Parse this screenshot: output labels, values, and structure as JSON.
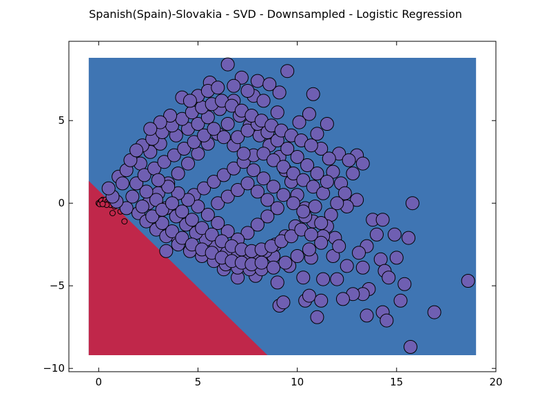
{
  "chart_data": {
    "type": "scatter",
    "title": "Spanish(Spain)-Slovakia - SVD - Downsampled - Logistic Regression",
    "xlabel": "",
    "ylabel": "",
    "xlim": [
      -1.5,
      20
    ],
    "ylim": [
      -10.2,
      9.8
    ],
    "x_ticks": [
      0,
      5,
      10,
      15,
      20
    ],
    "x_tick_labels": [
      "0",
      "5",
      "10",
      "15",
      "20"
    ],
    "y_ticks": [
      -10,
      -5,
      0,
      5
    ],
    "y_tick_labels": [
      "−10",
      "−5",
      "0",
      "5"
    ],
    "grid": false,
    "legend": "none",
    "decision_regions": {
      "extent_x": [
        -0.5,
        19.0
      ],
      "extent_y": [
        -9.2,
        8.8
      ],
      "boundary": [
        [
          -0.5,
          1.35
        ],
        [
          8.5,
          -9.2
        ]
      ],
      "colors": {
        "class_0": "#c0274a",
        "class_1": "#3f75b3"
      }
    },
    "series": [
      {
        "class": "class_0",
        "color": "#c0274a",
        "marker": "small",
        "points": [
          [
            0.0,
            0.0
          ],
          [
            0.1,
            0.1
          ],
          [
            0.2,
            0.2
          ],
          [
            0.3,
            0.1
          ],
          [
            0.05,
            -0.05
          ],
          [
            0.15,
            0.15
          ],
          [
            0.25,
            0.0
          ],
          [
            0.35,
            0.2
          ],
          [
            0.45,
            0.1
          ],
          [
            0.5,
            0.0
          ],
          [
            0.6,
            -0.1
          ],
          [
            0.7,
            -0.6
          ],
          [
            0.55,
            0.25
          ],
          [
            0.4,
            -0.1
          ],
          [
            0.2,
            -0.05
          ],
          [
            0.65,
            0.2
          ],
          [
            0.8,
            -0.2
          ],
          [
            1.3,
            -1.1
          ],
          [
            1.1,
            -0.5
          ],
          [
            0.9,
            0.1
          ]
        ]
      },
      {
        "class": "class_1",
        "color": "#6f5fb2",
        "marker": "large",
        "points": [
          [
            6.5,
            8.4
          ],
          [
            8.0,
            7.4
          ],
          [
            9.5,
            8.0
          ],
          [
            7.2,
            7.6
          ],
          [
            5.6,
            7.3
          ],
          [
            10.8,
            6.6
          ],
          [
            9.1,
            6.7
          ],
          [
            4.2,
            6.4
          ],
          [
            7.8,
            6.5
          ],
          [
            11.5,
            4.8
          ],
          [
            12.1,
            3.0
          ],
          [
            13.0,
            2.9
          ],
          [
            13.3,
            2.4
          ],
          [
            12.6,
            2.6
          ],
          [
            12.8,
            1.8
          ],
          [
            15.8,
            0.0
          ],
          [
            13.0,
            0.2
          ],
          [
            12.5,
            -0.2
          ],
          [
            13.8,
            -1.0
          ],
          [
            14.3,
            -1.0
          ],
          [
            14.0,
            -1.9
          ],
          [
            14.9,
            -1.9
          ],
          [
            15.6,
            -2.1
          ],
          [
            13.5,
            -2.6
          ],
          [
            13.1,
            -3.0
          ],
          [
            14.2,
            -3.4
          ],
          [
            15.0,
            -3.3
          ],
          [
            14.4,
            -4.1
          ],
          [
            13.3,
            -3.9
          ],
          [
            14.6,
            -4.5
          ],
          [
            15.4,
            -4.9
          ],
          [
            13.6,
            -5.2
          ],
          [
            13.3,
            -5.5
          ],
          [
            12.8,
            -5.5
          ],
          [
            12.3,
            -5.8
          ],
          [
            13.5,
            -6.8
          ],
          [
            14.3,
            -6.6
          ],
          [
            14.5,
            -7.1
          ],
          [
            16.9,
            -6.6
          ],
          [
            18.6,
            -4.7
          ],
          [
            15.2,
            -5.9
          ],
          [
            15.7,
            -8.7
          ],
          [
            11.0,
            -6.9
          ],
          [
            10.4,
            -5.9
          ],
          [
            10.6,
            -5.6
          ],
          [
            11.2,
            -5.9
          ],
          [
            10.3,
            -4.5
          ],
          [
            11.3,
            -4.6
          ],
          [
            9.1,
            -6.2
          ],
          [
            9.3,
            -6.0
          ],
          [
            9.0,
            -4.8
          ],
          [
            7.9,
            -4.4
          ],
          [
            7.0,
            -4.5
          ],
          [
            6.3,
            -4.0
          ],
          [
            12.0,
            -4.6
          ],
          [
            12.5,
            -3.8
          ],
          [
            11.8,
            -3.2
          ],
          [
            10.7,
            -3.3
          ],
          [
            9.6,
            -3.8
          ],
          [
            8.8,
            -3.2
          ],
          [
            3.4,
            -2.9
          ],
          [
            4.0,
            -2.2
          ],
          [
            1.4,
            -0.3
          ],
          [
            0.9,
            0.1
          ],
          [
            0.7,
            0.4
          ],
          [
            0.5,
            0.9
          ],
          [
            1.0,
            1.6
          ],
          [
            1.4,
            2.0
          ],
          [
            2.1,
            2.4
          ],
          [
            2.6,
            3.1
          ],
          [
            3.1,
            3.6
          ],
          [
            3.9,
            4.1
          ],
          [
            4.5,
            4.5
          ],
          [
            5.0,
            4.8
          ],
          [
            5.5,
            5.2
          ],
          [
            6.1,
            5.7
          ],
          [
            6.8,
            6.2
          ],
          [
            7.5,
            6.8
          ],
          [
            8.3,
            6.2
          ],
          [
            9.0,
            5.5
          ],
          [
            10.1,
            4.9
          ],
          [
            10.6,
            5.4
          ],
          [
            11.0,
            4.2
          ],
          [
            11.2,
            3.3
          ],
          [
            11.6,
            2.7
          ],
          [
            11.8,
            1.9
          ],
          [
            12.2,
            1.2
          ],
          [
            12.4,
            0.6
          ],
          [
            12.0,
            0.0
          ],
          [
            11.7,
            -0.7
          ],
          [
            11.5,
            -1.4
          ],
          [
            11.9,
            -2.1
          ],
          [
            12.1,
            -2.6
          ],
          [
            11.3,
            -2.0
          ],
          [
            10.8,
            -1.1
          ],
          [
            10.4,
            -0.3
          ],
          [
            10.0,
            0.5
          ],
          [
            9.7,
            1.3
          ],
          [
            9.4,
            2.0
          ],
          [
            9.1,
            2.8
          ],
          [
            8.6,
            3.5
          ],
          [
            8.1,
            4.1
          ],
          [
            7.6,
            4.7
          ],
          [
            7.1,
            5.3
          ],
          [
            6.5,
            4.8
          ],
          [
            6.0,
            4.2
          ],
          [
            5.5,
            3.6
          ],
          [
            5.0,
            3.0
          ],
          [
            4.5,
            2.4
          ],
          [
            4.0,
            1.8
          ],
          [
            3.5,
            1.2
          ],
          [
            3.0,
            0.6
          ],
          [
            2.5,
            0.0
          ],
          [
            2.0,
            -0.6
          ],
          [
            2.4,
            -1.1
          ],
          [
            2.9,
            -1.6
          ],
          [
            3.4,
            -2.0
          ],
          [
            4.0,
            -2.5
          ],
          [
            4.6,
            -2.9
          ],
          [
            5.2,
            -3.2
          ],
          [
            5.8,
            -3.5
          ],
          [
            6.4,
            -3.7
          ],
          [
            7.0,
            -3.9
          ],
          [
            7.6,
            -4.0
          ],
          [
            8.2,
            -4.0
          ],
          [
            8.8,
            -3.9
          ],
          [
            9.4,
            -3.6
          ],
          [
            10.0,
            -3.2
          ],
          [
            10.6,
            -2.8
          ],
          [
            11.2,
            -2.4
          ],
          [
            4.8,
            0.5
          ],
          [
            5.3,
            0.9
          ],
          [
            5.8,
            1.3
          ],
          [
            6.3,
            1.7
          ],
          [
            6.8,
            2.1
          ],
          [
            7.3,
            2.5
          ],
          [
            7.8,
            2.9
          ],
          [
            8.3,
            3.0
          ],
          [
            8.8,
            2.6
          ],
          [
            9.3,
            2.2
          ],
          [
            9.8,
            1.8
          ],
          [
            10.3,
            1.4
          ],
          [
            10.8,
            1.0
          ],
          [
            11.3,
            0.6
          ],
          [
            10.9,
            -0.2
          ],
          [
            10.4,
            -0.8
          ],
          [
            9.9,
            -1.4
          ],
          [
            9.4,
            -2.0
          ],
          [
            8.9,
            -2.5
          ],
          [
            8.4,
            -2.9
          ],
          [
            7.9,
            -3.1
          ],
          [
            7.4,
            -3.2
          ],
          [
            6.9,
            -3.1
          ],
          [
            6.4,
            -2.9
          ],
          [
            5.9,
            -2.6
          ],
          [
            5.4,
            -2.2
          ],
          [
            4.9,
            -1.8
          ],
          [
            4.4,
            -1.3
          ],
          [
            3.9,
            -0.8
          ],
          [
            3.4,
            -0.3
          ],
          [
            2.9,
            0.2
          ],
          [
            2.4,
            0.7
          ],
          [
            1.9,
            1.2
          ],
          [
            2.3,
            1.7
          ],
          [
            2.8,
            2.1
          ],
          [
            3.3,
            2.5
          ],
          [
            3.8,
            2.9
          ],
          [
            4.3,
            3.3
          ],
          [
            4.8,
            3.7
          ],
          [
            5.3,
            4.1
          ],
          [
            5.8,
            4.5
          ],
          [
            6.3,
            4.0
          ],
          [
            6.8,
            3.5
          ],
          [
            7.3,
            3.0
          ],
          [
            7.8,
            2.0
          ],
          [
            8.3,
            1.5
          ],
          [
            8.8,
            1.0
          ],
          [
            9.3,
            0.5
          ],
          [
            9.8,
            0.0
          ],
          [
            10.3,
            -0.5
          ],
          [
            6.0,
            0.0
          ],
          [
            6.5,
            0.4
          ],
          [
            7.0,
            0.8
          ],
          [
            7.5,
            1.2
          ],
          [
            8.0,
            0.7
          ],
          [
            8.5,
            0.2
          ],
          [
            9.0,
            -0.3
          ],
          [
            8.5,
            -0.8
          ],
          [
            8.0,
            -1.3
          ],
          [
            7.5,
            -1.8
          ],
          [
            7.0,
            -2.2
          ],
          [
            6.5,
            -1.7
          ],
          [
            6.0,
            -1.2
          ],
          [
            5.5,
            -0.7
          ],
          [
            5.0,
            -0.2
          ],
          [
            4.5,
            0.2
          ],
          [
            4.0,
            0.6
          ],
          [
            3.5,
            1.0
          ],
          [
            3.0,
            1.4
          ],
          [
            3.2,
            -1.2
          ],
          [
            3.7,
            -1.7
          ],
          [
            4.2,
            -2.1
          ],
          [
            4.7,
            -2.5
          ],
          [
            5.2,
            -2.8
          ],
          [
            5.7,
            -3.0
          ],
          [
            6.2,
            -3.3
          ],
          [
            6.7,
            -3.5
          ],
          [
            7.2,
            -3.6
          ],
          [
            7.7,
            -3.7
          ],
          [
            8.2,
            -3.6
          ],
          [
            7.0,
            4.0
          ],
          [
            7.5,
            4.4
          ],
          [
            8.0,
            4.8
          ],
          [
            8.5,
            4.3
          ],
          [
            9.0,
            3.8
          ],
          [
            9.5,
            3.3
          ],
          [
            10.0,
            2.8
          ],
          [
            10.5,
            2.3
          ],
          [
            11.0,
            1.8
          ],
          [
            11.5,
            1.3
          ],
          [
            2.2,
            3.5
          ],
          [
            2.7,
            3.9
          ],
          [
            3.2,
            4.3
          ],
          [
            3.7,
            4.7
          ],
          [
            4.2,
            5.1
          ],
          [
            4.7,
            5.5
          ],
          [
            5.2,
            5.8
          ],
          [
            5.7,
            6.0
          ],
          [
            6.2,
            6.2
          ],
          [
            6.7,
            5.9
          ],
          [
            7.2,
            5.6
          ],
          [
            7.7,
            5.3
          ],
          [
            8.2,
            5.0
          ],
          [
            8.7,
            4.7
          ],
          [
            9.2,
            4.4
          ],
          [
            9.7,
            4.1
          ],
          [
            10.2,
            3.8
          ],
          [
            10.7,
            3.5
          ],
          [
            1.6,
            2.6
          ],
          [
            1.2,
            1.2
          ],
          [
            1.7,
            0.4
          ],
          [
            2.2,
            -0.2
          ],
          [
            2.7,
            -0.8
          ],
          [
            3.2,
            -0.4
          ],
          [
            3.7,
            0.0
          ],
          [
            4.2,
            -0.5
          ],
          [
            4.7,
            -1.0
          ],
          [
            5.2,
            -1.5
          ],
          [
            5.7,
            -1.9
          ],
          [
            6.2,
            -2.3
          ],
          [
            6.7,
            -2.6
          ],
          [
            7.2,
            -2.8
          ],
          [
            7.7,
            -2.9
          ],
          [
            8.2,
            -2.8
          ],
          [
            8.7,
            -2.6
          ],
          [
            9.2,
            -2.3
          ],
          [
            9.7,
            -2.0
          ],
          [
            10.2,
            -1.6
          ],
          [
            10.7,
            -1.9
          ],
          [
            11.2,
            -1.2
          ],
          [
            5.0,
            6.5
          ],
          [
            5.5,
            6.8
          ],
          [
            6.0,
            7.0
          ],
          [
            4.6,
            6.2
          ],
          [
            3.6,
            5.3
          ],
          [
            3.1,
            4.9
          ],
          [
            2.6,
            4.5
          ],
          [
            1.9,
            3.2
          ],
          [
            6.8,
            7.1
          ],
          [
            8.6,
            7.2
          ]
        ]
      }
    ]
  }
}
